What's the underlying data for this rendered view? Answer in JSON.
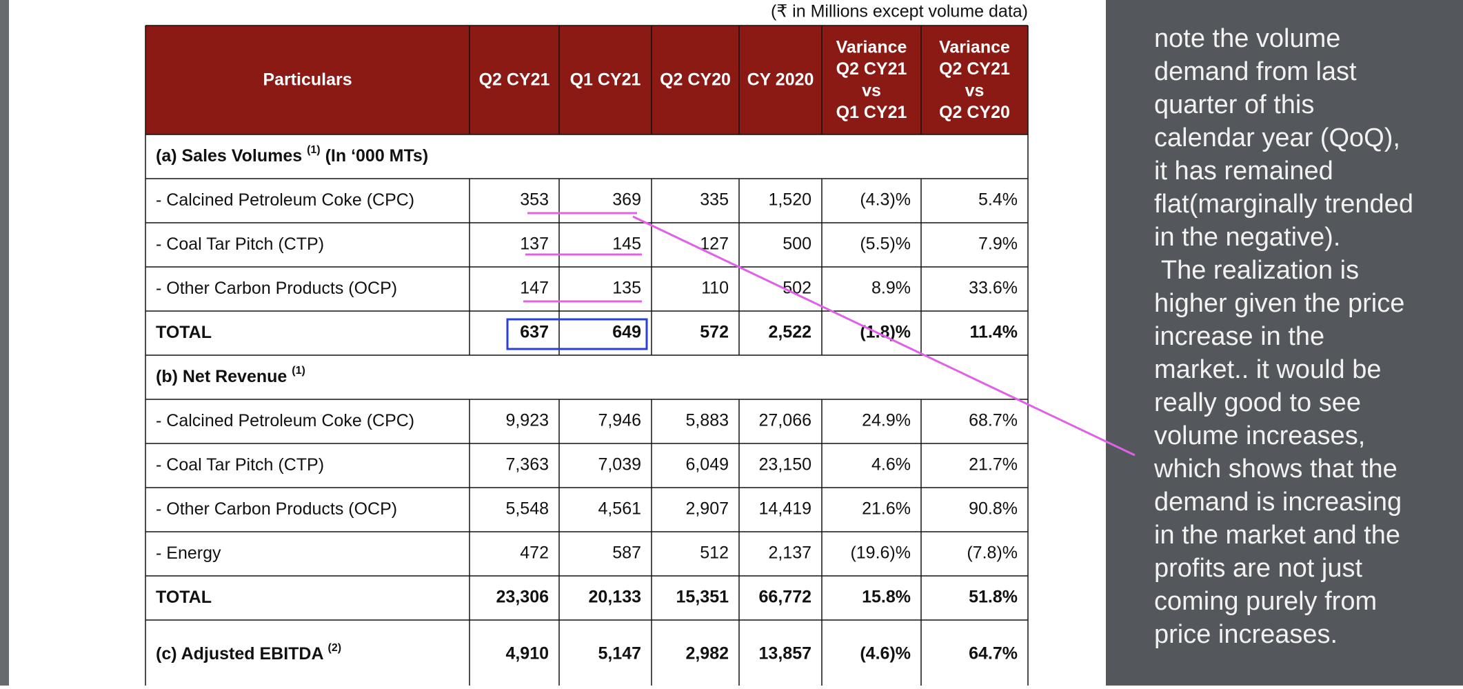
{
  "table": {
    "caption": "(₹ in Millions except volume data)",
    "header": [
      "Particulars",
      "Q2 CY21",
      "Q1 CY21",
      "Q2 CY20",
      "CY 2020",
      [
        "Variance",
        "Q2 CY21",
        "vs",
        "Q1 CY21"
      ],
      [
        "Variance",
        "Q2 CY21",
        "vs",
        "Q2 CY20"
      ]
    ],
    "rows": [
      {
        "label": "(a) Sales Volumes",
        "sup": "(1)",
        "suffix": "(In ‘000 MTs)",
        "section": true
      },
      {
        "label": "- Calcined Petroleum Coke (CPC)",
        "cells": [
          "353",
          "369",
          "335",
          "1,520",
          "(4.3)%",
          "5.4%"
        ]
      },
      {
        "label": "- Coal Tar Pitch (CTP)",
        "cells": [
          "137",
          "145",
          "127",
          "500",
          "(5.5)%",
          "7.9%"
        ]
      },
      {
        "label": "- Other Carbon Products (OCP)",
        "cells": [
          "147",
          "135",
          "110",
          "502",
          "8.9%",
          "33.6%"
        ]
      },
      {
        "label": "TOTAL",
        "bold": true,
        "cells": [
          "637",
          "649",
          "572",
          "2,522",
          "(1.8)%",
          "11.4%"
        ]
      },
      {
        "label": "(b) Net Revenue",
        "sup": "(1)",
        "section": true
      },
      {
        "label": "- Calcined Petroleum Coke (CPC)",
        "cells": [
          "9,923",
          "7,946",
          "5,883",
          "27,066",
          "24.9%",
          "68.7%"
        ]
      },
      {
        "label": "- Coal Tar Pitch (CTP)",
        "cells": [
          "7,363",
          "7,039",
          "6,049",
          "23,150",
          "4.6%",
          "21.7%"
        ]
      },
      {
        "label": "- Other Carbon Products (OCP)",
        "cells": [
          "5,548",
          "4,561",
          "2,907",
          "14,419",
          "21.6%",
          "90.8%"
        ]
      },
      {
        "label": "- Energy",
        "cells": [
          "472",
          "587",
          "512",
          "2,137",
          "(19.6)%",
          "(7.8)%"
        ]
      },
      {
        "label": "TOTAL",
        "bold": true,
        "cells": [
          "23,306",
          "20,133",
          "15,351",
          "66,772",
          "15.8%",
          "51.8%"
        ]
      },
      {
        "label": "(c) Adjusted EBITDA",
        "sup": "(2)",
        "bold": true,
        "cells": [
          "4,910",
          "5,147",
          "2,982",
          "13,857",
          "(4.6)%",
          "64.7%"
        ]
      }
    ]
  },
  "note": [
    "note the volume",
    "demand from last",
    "quarter of this",
    "calendar year (QoQ),",
    "it has remained",
    "flat(marginally trended",
    "in the negative).",
    " The realization is",
    "higher given the price",
    "increase in the",
    "market.. it would be",
    "really good to see",
    "volume increases,",
    "which shows that the",
    "demand is increasing",
    "in the market and the",
    "profits are not just",
    "coming purely from",
    "price increases."
  ]
}
